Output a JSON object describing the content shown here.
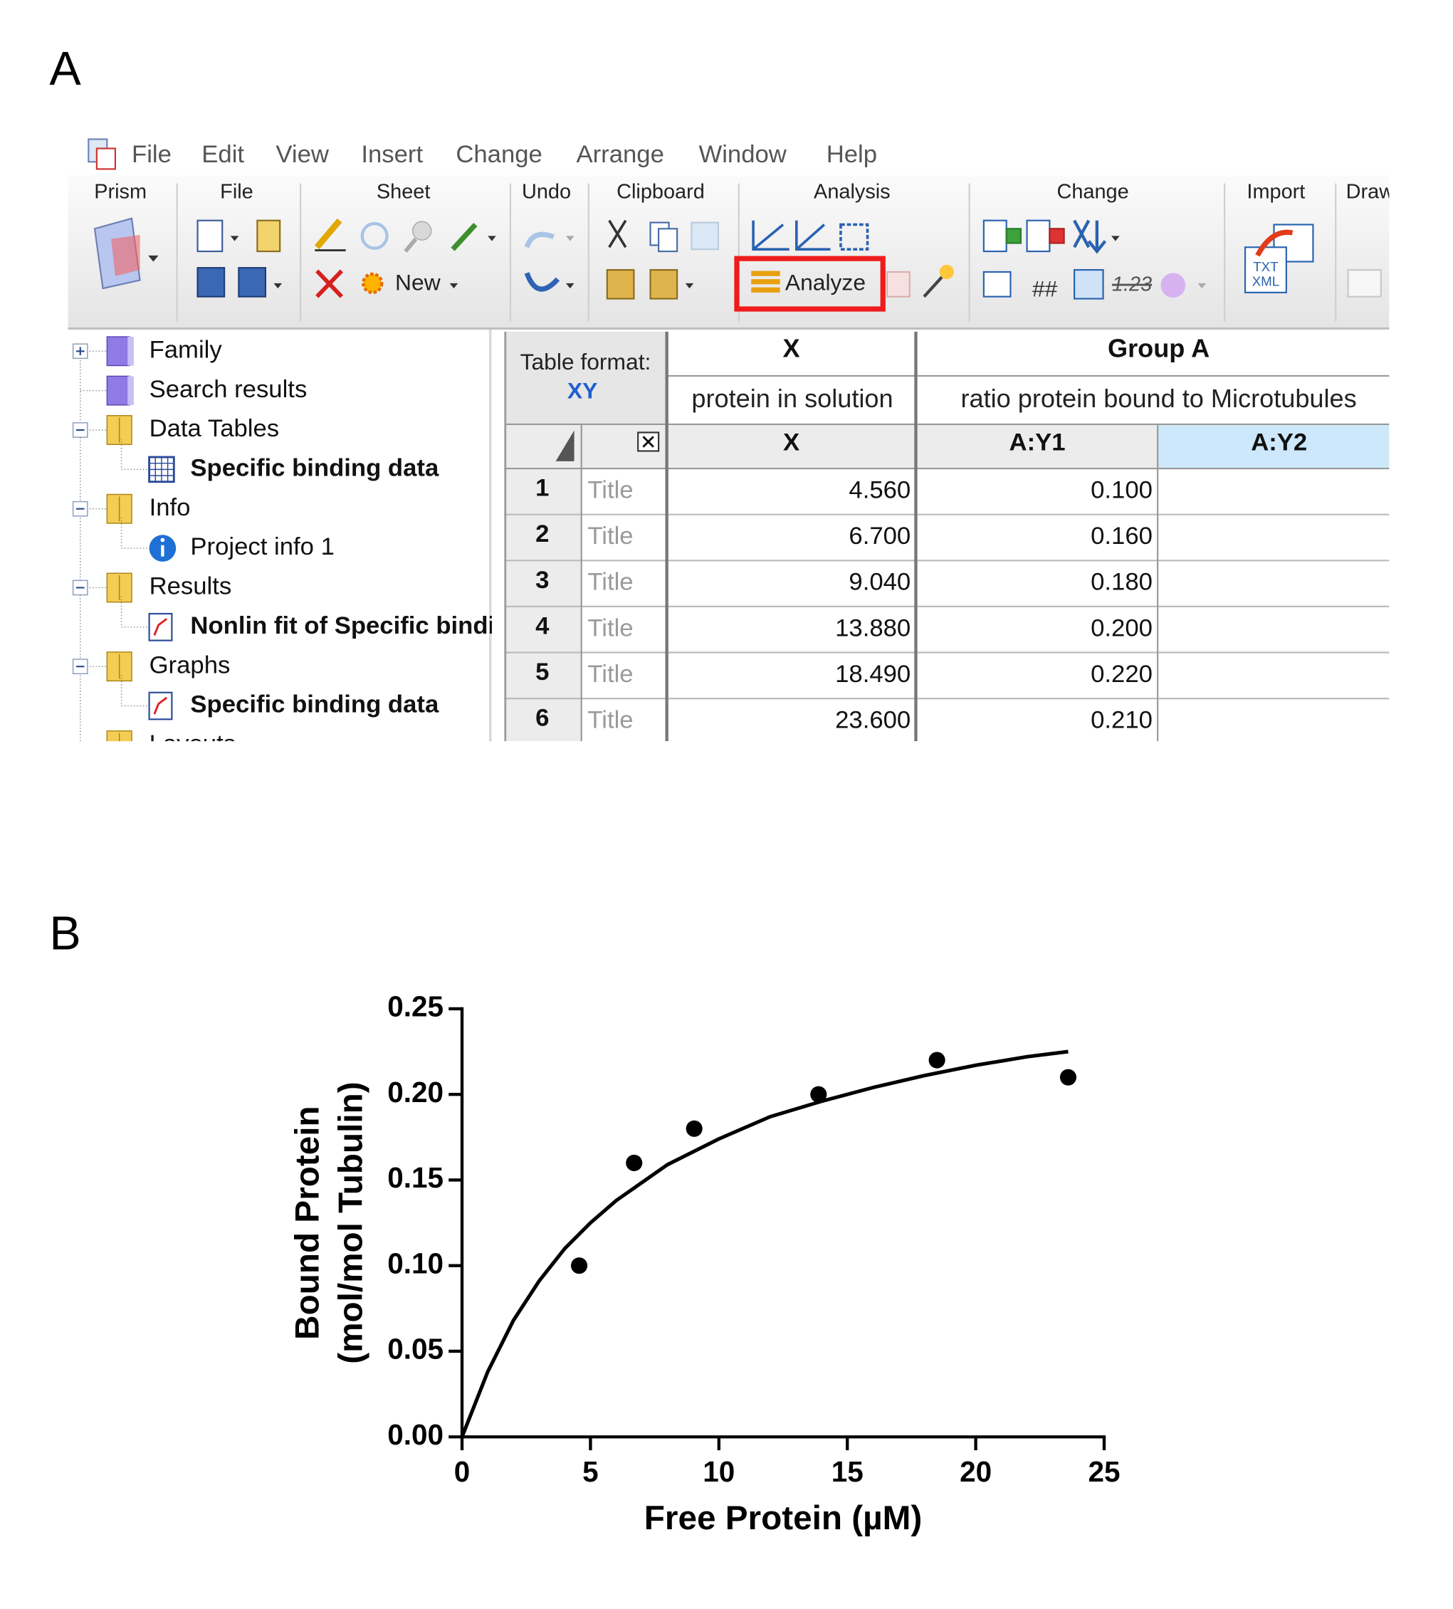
{
  "panel_labels": [
    "A",
    "B"
  ],
  "menu": [
    "File",
    "Edit",
    "View",
    "Insert",
    "Change",
    "Arrange",
    "Window",
    "Help"
  ],
  "ribbon": {
    "groups": [
      "Prism",
      "File",
      "Sheet",
      "Undo",
      "Clipboard",
      "Analysis",
      "Change",
      "Import",
      "Draw"
    ],
    "new_button": "New",
    "analyze_button": "Analyze",
    "icon_texts": [
      "##",
      "1.23",
      "TXT",
      "XML"
    ]
  },
  "navigator": [
    {
      "label": "Family",
      "level": 0,
      "icon": "family",
      "expander": "plus"
    },
    {
      "label": "Search results",
      "level": 0,
      "icon": "family"
    },
    {
      "label": "Data Tables",
      "level": 0,
      "icon": "folder",
      "expander": "minus"
    },
    {
      "label": "Specific binding data",
      "level": 1,
      "icon": "table",
      "bold": true
    },
    {
      "label": "Info",
      "level": 0,
      "icon": "folder",
      "expander": "minus"
    },
    {
      "label": "Project info 1",
      "level": 1,
      "icon": "info"
    },
    {
      "label": "Results",
      "level": 0,
      "icon": "folder",
      "expander": "minus"
    },
    {
      "label": "Nonlin fit of Specific binding data",
      "level": 1,
      "icon": "graph",
      "bold": true
    },
    {
      "label": "Graphs",
      "level": 0,
      "icon": "folder",
      "expander": "minus"
    },
    {
      "label": "Specific binding data",
      "level": 1,
      "icon": "graph",
      "bold": true
    },
    {
      "label": "Layouts",
      "level": 0,
      "icon": "folder"
    }
  ],
  "table": {
    "format_label": "Table format:",
    "format": "XY",
    "x_header": "X",
    "group_header": "Group A",
    "x_title": "protein in solution",
    "group_title": "ratio protein bound to Microtubules",
    "columns": [
      "X",
      "A:Y1",
      "A:Y2"
    ],
    "rows": [
      [
        "1",
        "Title",
        "4.560",
        "0.100"
      ],
      [
        "2",
        "Title",
        "6.700",
        "0.160"
      ],
      [
        "3",
        "Title",
        "9.040",
        "0.180"
      ],
      [
        "4",
        "Title",
        "13.880",
        "0.200"
      ],
      [
        "5",
        "Title",
        "18.490",
        "0.220"
      ],
      [
        "6",
        "Title",
        "23.600",
        "0.210"
      ]
    ]
  },
  "chart_data": {
    "type": "scatter",
    "xlabel": "Free Protein (µM)",
    "ylabel": [
      "Bound Protein",
      "(mol/mol Tubulin)"
    ],
    "xlim": [
      0,
      25
    ],
    "ylim": [
      0,
      0.25
    ],
    "xticks": [
      0,
      5,
      10,
      15,
      20,
      25
    ],
    "yticks": [
      {
        "value": 0,
        "label": "0.00"
      },
      {
        "value": 0.05,
        "label": "0.05"
      },
      {
        "value": 0.1,
        "label": "0.10"
      },
      {
        "value": 0.15,
        "label": "0.15"
      },
      {
        "value": 0.2,
        "label": "0.20"
      },
      {
        "value": 0.25,
        "label": "0.25"
      }
    ],
    "series": [
      {
        "mode": "markers",
        "color": "#000000",
        "x": [
          4.56,
          6.7,
          9.04,
          13.88,
          18.49,
          23.6
        ],
        "values": [
          0.1,
          0.16,
          0.18,
          0.2,
          0.22,
          0.21
        ]
      },
      {
        "mode": "line",
        "color": "#000000",
        "x": [
          0,
          1,
          2,
          3,
          4,
          5,
          6,
          8,
          10,
          12,
          14,
          16,
          18,
          20,
          22,
          23.6
        ],
        "values": [
          0,
          0.038,
          0.068,
          0.091,
          0.11,
          0.125,
          0.138,
          0.159,
          0.174,
          0.187,
          0.196,
          0.204,
          0.211,
          0.217,
          0.222,
          0.225
        ]
      }
    ]
  }
}
